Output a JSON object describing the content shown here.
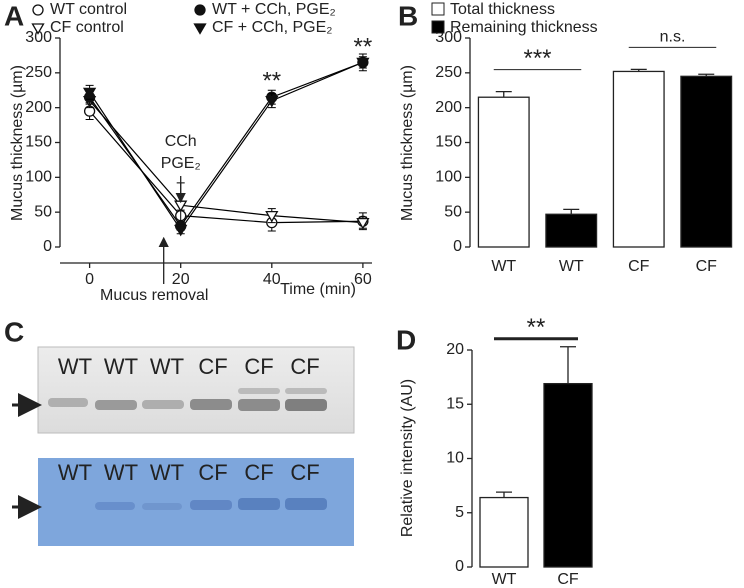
{
  "chart_data": [
    {
      "type": "line",
      "label": "A",
      "xlabel": "Time (min)",
      "ylabel": "Mucus thickness (µm)",
      "x": [
        0,
        20,
        40,
        60
      ],
      "xlim": [
        -6.5,
        62
      ],
      "xticks": [
        0,
        20,
        40,
        60
      ],
      "ylim": [
        0,
        300
      ],
      "yticks": [
        0,
        50,
        100,
        150,
        200,
        250,
        300
      ],
      "series": [
        {
          "name": "WT control",
          "color": "#000000",
          "marker": "circle-open",
          "values": [
            195,
            45,
            35,
            37
          ],
          "errors": [
            12,
            8,
            12,
            12
          ]
        },
        {
          "name": "CF control",
          "color": "#000000",
          "marker": "triangle-open",
          "values": [
            210,
            60,
            45,
            35
          ],
          "errors": [
            10,
            32,
            10,
            8
          ]
        },
        {
          "name": "WT + CCh, PGE₂",
          "color": "#000000",
          "marker": "circle-filled",
          "values": [
            215,
            30,
            215,
            265
          ],
          "errors": [
            10,
            6,
            10,
            12
          ]
        },
        {
          "name": "CF + CCh, PGE₂",
          "color": "#000000",
          "marker": "triangle-filled",
          "values": [
            222,
            25,
            210,
            265
          ],
          "errors": [
            10,
            6,
            10,
            8
          ]
        }
      ],
      "treatment": {
        "x": 20,
        "labels": [
          "CCh",
          "PGE₂"
        ]
      },
      "removal": {
        "x": 20,
        "label": "Mucus removal"
      },
      "significance": [
        {
          "x": 40,
          "label": "**"
        },
        {
          "x": 60,
          "label": "**"
        }
      ]
    },
    {
      "type": "bar",
      "label": "B",
      "ylabel": "Mucus thickness (µm)",
      "categories": [
        "WT",
        "WT",
        "CF",
        "CF"
      ],
      "values": [
        215,
        47,
        252,
        245
      ],
      "errors": [
        8,
        7,
        3,
        3
      ],
      "colors": [
        "#ffffff",
        "#000000",
        "#ffffff",
        "#000000"
      ],
      "legend": [
        "Total thickness",
        "Remaining thickness"
      ],
      "ylim": [
        0,
        300
      ],
      "yticks": [
        0,
        50,
        100,
        150,
        200,
        250,
        300
      ],
      "comparisons": [
        {
          "bars": [
            0,
            1
          ],
          "label": "***"
        },
        {
          "bars": [
            2,
            3
          ],
          "label": "n.s."
        }
      ]
    },
    {
      "type": "bar",
      "label": "D",
      "ylabel": "Relative intensity (AU)",
      "categories": [
        "WT",
        "CF"
      ],
      "values": [
        6.4,
        16.9
      ],
      "errors": [
        0.5,
        3.4
      ],
      "colors": [
        "#ffffff",
        "#000000"
      ],
      "ylim": [
        0,
        20
      ],
      "yticks": [
        0,
        5,
        10,
        15,
        20
      ],
      "comparisons": [
        {
          "bars": [
            0,
            1
          ],
          "label": "**"
        }
      ]
    }
  ],
  "gel_panel": {
    "label": "C",
    "gels": [
      {
        "lanes": [
          "WT",
          "WT",
          "WT",
          "CF",
          "CF",
          "CF"
        ]
      },
      {
        "lanes": [
          "WT",
          "WT",
          "WT",
          "CF",
          "CF",
          "CF"
        ]
      }
    ]
  }
}
